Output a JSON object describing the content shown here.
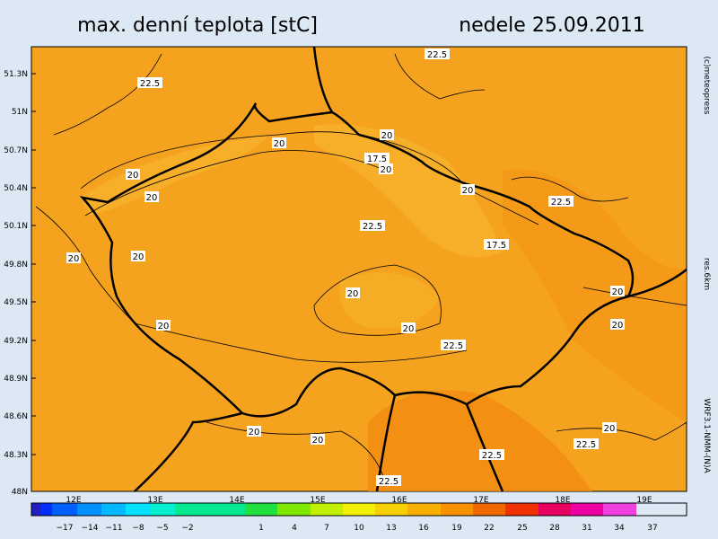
{
  "header": {
    "title": "max. denní teplota [stC]",
    "date": "nedele 25.09.2011"
  },
  "side": {
    "credit": "(c)meteopress",
    "resolution": "res.6km",
    "model": "WRF3.1-NMM-(N)A"
  },
  "axis": {
    "lat": [
      "51.3N",
      "51N",
      "50.7N",
      "50.4N",
      "50.1N",
      "49.8N",
      "49.5N",
      "49.2N",
      "48.9N",
      "48.6N",
      "48.3N",
      "48N"
    ],
    "lon": [
      "12E",
      "13E",
      "14E",
      "15E",
      "16E",
      "17E",
      "18E",
      "19E"
    ]
  },
  "colorbar": {
    "labels": [
      "−17",
      "−14",
      "−11",
      "−8",
      "−5",
      "−2",
      "1",
      "4",
      "7",
      "10",
      "13",
      "16",
      "19",
      "22",
      "25",
      "28",
      "31",
      "34",
      "37"
    ]
  },
  "contours": [
    "22.5",
    "22.5",
    "20",
    "20",
    "17.5",
    "20",
    "20",
    "20",
    "20",
    "22.5",
    "22.5",
    "17.5",
    "20",
    "20",
    "20",
    "20",
    "20",
    "20",
    "20",
    "22.5",
    "20",
    "20",
    "20",
    "22.5",
    "22.5",
    "22.5"
  ]
}
